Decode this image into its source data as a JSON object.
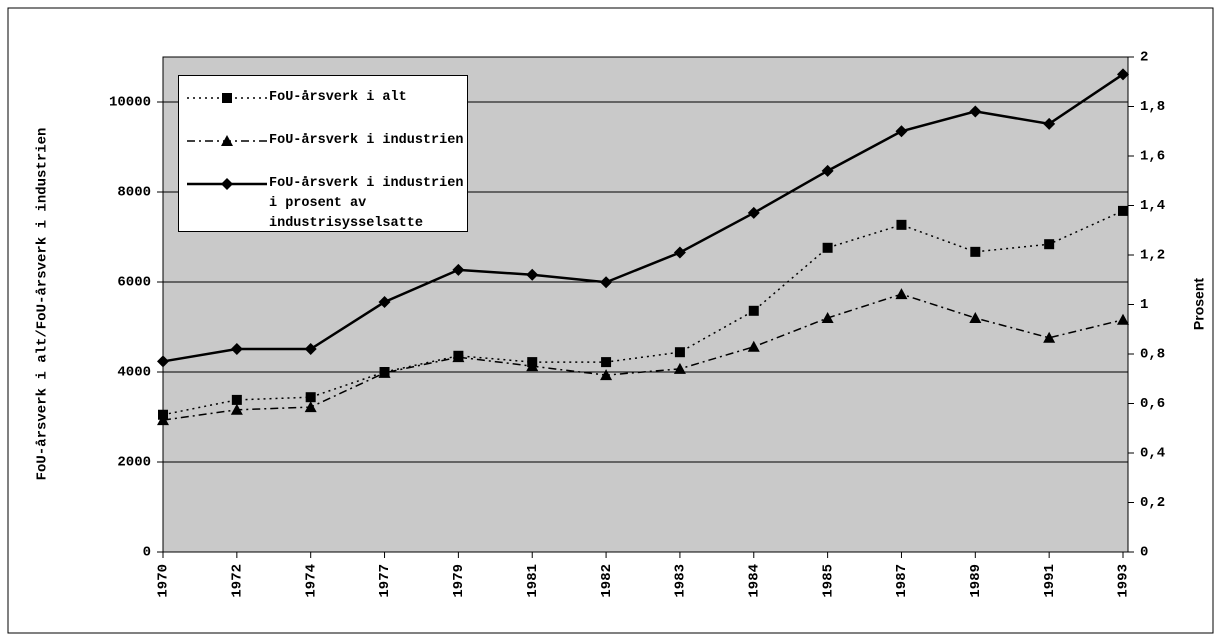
{
  "chart_data": {
    "type": "line",
    "categories": [
      "1970",
      "1972",
      "1974",
      "1977",
      "1979",
      "1981",
      "1982",
      "1983",
      "1984",
      "1985",
      "1987",
      "1989",
      "1991",
      "1993"
    ],
    "y_label": "FoU-årsverk i alt/FoU-årsverk i industrien",
    "y2_label": "Prosent",
    "ylim": [
      0,
      11000
    ],
    "yticks": [
      0,
      2000,
      4000,
      6000,
      8000,
      10000
    ],
    "y2lim": [
      0,
      2
    ],
    "y2ticks": [
      0,
      {
        "value": 0.2,
        "label": "0,2"
      },
      {
        "value": 0.4,
        "label": "0,4"
      },
      {
        "value": 0.6,
        "label": "0,6"
      },
      {
        "value": 0.8,
        "label": "0,8"
      },
      1,
      {
        "value": 1.2,
        "label": "1,2"
      },
      {
        "value": 1.4,
        "label": "1,4"
      },
      {
        "value": 1.6,
        "label": "1,6"
      },
      {
        "value": 1.8,
        "label": "1,8"
      },
      2
    ],
    "grid": true,
    "legend": "top-left",
    "series": [
      {
        "name": "FoU-årsverk i alt",
        "color": "#000000",
        "marker": "square",
        "dash": "dotted",
        "values": [
          3050,
          3380,
          3440,
          4000,
          4360,
          4220,
          4220,
          4440,
          5360,
          6760,
          7270,
          6670,
          6840,
          7580
        ]
      },
      {
        "name": "FoU-årsverk i industrien",
        "color": "#000000",
        "marker": "triangle",
        "dash": "dashdot",
        "values": [
          2930,
          3160,
          3220,
          3980,
          4330,
          4130,
          3930,
          4070,
          4560,
          5200,
          5730,
          5200,
          4760,
          5160
        ]
      },
      {
        "name": "FoU-årsverk i industrien i prosent av industrisysselsatte",
        "color": "#000000",
        "marker": "diamond",
        "dash": "solid",
        "axis": "y2",
        "values": [
          0.77,
          0.82,
          0.82,
          1.01,
          1.14,
          1.12,
          1.09,
          1.21,
          1.37,
          1.54,
          1.7,
          1.78,
          1.73,
          1.93
        ]
      }
    ]
  }
}
